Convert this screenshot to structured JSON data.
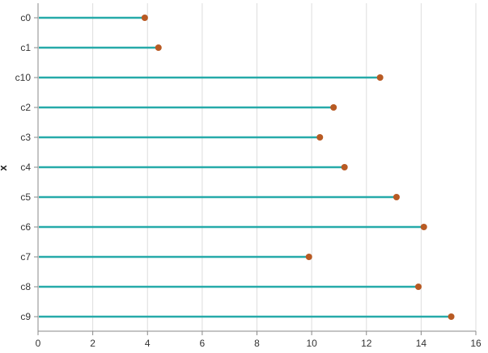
{
  "chart_data": {
    "type": "lollipop",
    "orientation": "horizontal",
    "categories": [
      "c0",
      "c1",
      "c10",
      "c2",
      "c3",
      "c4",
      "c5",
      "c6",
      "c7",
      "c8",
      "c9"
    ],
    "values": [
      3.9,
      4.4,
      12.5,
      10.8,
      10.3,
      11.2,
      13.1,
      14.1,
      9.9,
      13.9,
      15.1
    ],
    "ylabel": "x",
    "xlabel": "",
    "xlim": [
      0,
      16
    ],
    "xticks": [
      0,
      2,
      4,
      6,
      8,
      10,
      12,
      14,
      16
    ],
    "grid": "vertical",
    "colors": {
      "stem": "#26aaa9",
      "dot": "#b85a23",
      "grid": "#dddddd",
      "axis": "#888888"
    }
  }
}
